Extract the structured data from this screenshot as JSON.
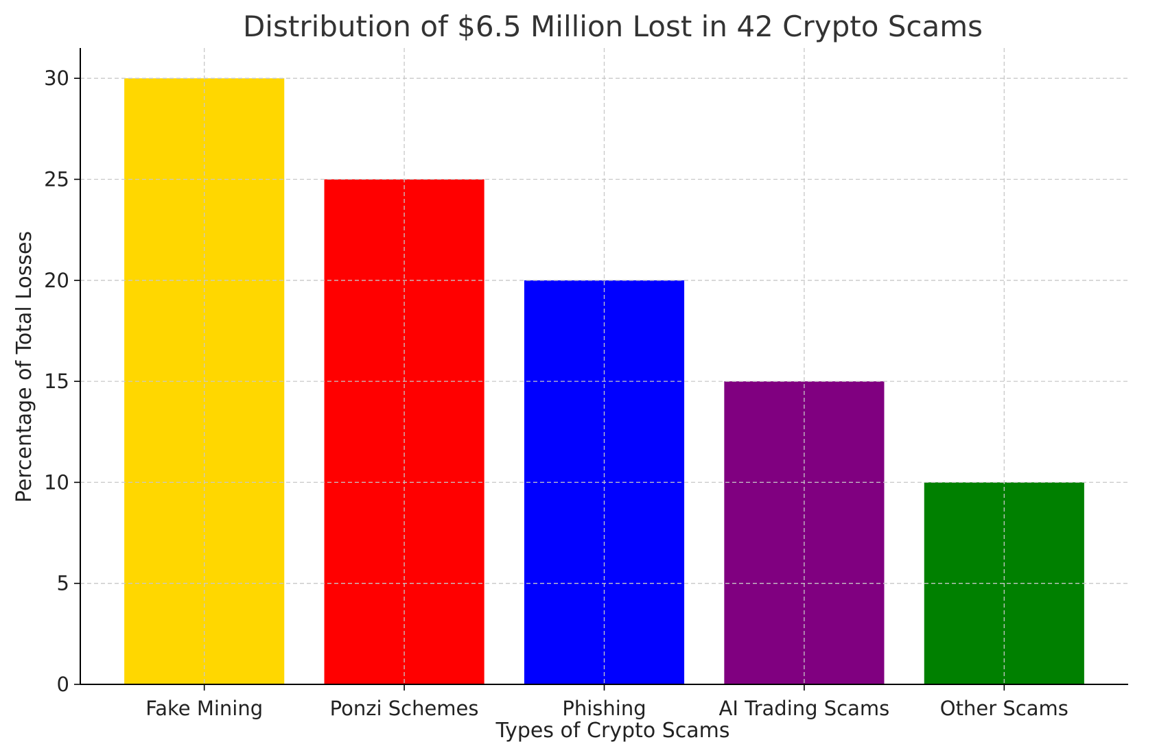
{
  "chart_data": {
    "type": "bar",
    "title": "Distribution of $6.5 Million Lost in 42 Crypto Scams",
    "xlabel": "Types of Crypto Scams",
    "ylabel": "Percentage of Total Losses",
    "categories": [
      "Fake Mining",
      "Ponzi Schemes",
      "Phishing",
      "AI Trading Scams",
      "Other Scams"
    ],
    "values": [
      30,
      25,
      20,
      15,
      10
    ],
    "colors": [
      "#FFD700",
      "#FF0000",
      "#0000FF",
      "#800080",
      "#008000"
    ],
    "ylim": [
      0,
      31.5
    ],
    "yticks": [
      0,
      5,
      10,
      15,
      20,
      25,
      30
    ],
    "grid": true,
    "legend": "none"
  }
}
